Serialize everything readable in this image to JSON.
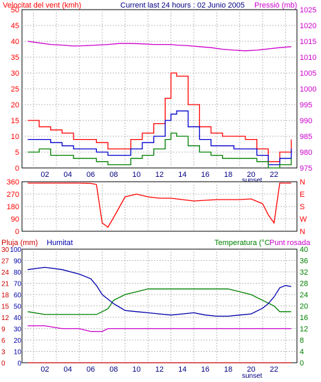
{
  "header": {
    "left_title": "Velocitat del vent (kmh)",
    "center_title": "Current last 24 hours : 02 Junio 2005",
    "right_title": "Pressió (mb)"
  },
  "x_ticks": [
    "02",
    "04",
    "06",
    "08",
    "10",
    "12",
    "14",
    "16",
    "18",
    "20",
    "22"
  ],
  "sunset_label": "sunset",
  "colors": {
    "wind_gust": "#ff0000",
    "wind_avg": "#0000cc",
    "wind_min": "#008000",
    "pressure": "#cc00cc",
    "direction": "#ff0000",
    "humidity": "#0000aa",
    "temperature": "#008000",
    "dewpoint": "#cc00cc",
    "rain": "#cc0000",
    "grid": "#bbbbbb"
  },
  "chart_data": [
    {
      "type": "line",
      "name": "wind-pressure",
      "left_axis": {
        "label": "Velocitat del vent (kmh)",
        "ticks": [
          0,
          5,
          10,
          15,
          20,
          25,
          30,
          35,
          40,
          45,
          50
        ],
        "ylim": [
          0,
          50
        ]
      },
      "right_axis": {
        "label": "Pressió (mb)",
        "ticks": [
          975,
          980,
          985,
          990,
          995,
          1000,
          1005,
          1010,
          1015,
          1020,
          1025
        ],
        "ylim": [
          975,
          1025
        ]
      },
      "x": [
        0.5,
        1.5,
        2.5,
        3.5,
        4.5,
        5.5,
        6.5,
        7.5,
        8.5,
        9.5,
        10.5,
        11.5,
        12.5,
        13,
        13.5,
        14.5,
        15.5,
        16.5,
        17.5,
        18.5,
        19.5,
        20.5,
        21.5,
        22.5,
        23.5
      ],
      "series": [
        {
          "key": "gust",
          "values": [
            15,
            13,
            12,
            11,
            9,
            9,
            8,
            6,
            6,
            9,
            11,
            14,
            22,
            30,
            29,
            20,
            13,
            11,
            10,
            10,
            9,
            6,
            2,
            5,
            9
          ]
        },
        {
          "key": "avg",
          "values": [
            9,
            9,
            8,
            7,
            6,
            6,
            5,
            4,
            4,
            6,
            8,
            10,
            15,
            17,
            18,
            13,
            9,
            7,
            7,
            6,
            6,
            4,
            1,
            3,
            6
          ]
        },
        {
          "key": "min",
          "values": [
            5,
            6,
            4,
            4,
            3,
            3,
            2,
            1,
            1,
            3,
            4,
            6,
            9,
            11,
            10,
            7,
            5,
            4,
            3,
            3,
            3,
            2,
            0,
            1,
            3
          ]
        },
        {
          "key": "pressure",
          "values": [
            1015,
            1014.5,
            1014,
            1013.8,
            1013.5,
            1013.6,
            1013.8,
            1014,
            1014.3,
            1014.3,
            1014.2,
            1014,
            1014,
            1014,
            1013.8,
            1013.6,
            1013.3,
            1013,
            1012.5,
            1012.2,
            1012,
            1012.2,
            1012.6,
            1013,
            1013.3
          ]
        }
      ]
    },
    {
      "type": "line",
      "name": "wind-direction",
      "left_axis": {
        "ticks": [
          0,
          90,
          180,
          270,
          360
        ],
        "ylim": [
          0,
          360
        ]
      },
      "right_axis": {
        "ticks": [
          "N",
          "W",
          "S",
          "E",
          "N"
        ]
      },
      "x": [
        0.5,
        2,
        3.5,
        5,
        6,
        6.5,
        7,
        7.5,
        8,
        9,
        10,
        11,
        12,
        13,
        14,
        15,
        16,
        17,
        18,
        19,
        20,
        21,
        21.5,
        22,
        22.5,
        23,
        23.5
      ],
      "series": [
        {
          "key": "direction",
          "values": [
            350,
            350,
            350,
            350,
            348,
            340,
            60,
            30,
            100,
            250,
            270,
            250,
            240,
            240,
            230,
            220,
            225,
            230,
            230,
            230,
            235,
            200,
            120,
            60,
            350,
            350,
            350
          ]
        }
      ]
    },
    {
      "type": "line",
      "name": "rain-humidity-temperature",
      "labels": {
        "rain": "Pluja (mm)",
        "humidity": "Humitat",
        "temperature": "Temperatura (°C",
        "dewpoint": "Punt rosada"
      },
      "left_axes": {
        "rain": {
          "ticks": [
            0,
            3,
            6,
            9,
            12,
            15,
            18,
            21,
            24,
            27,
            30
          ],
          "ylim": [
            0,
            30
          ]
        },
        "humidity": {
          "ticks": [
            0,
            10,
            20,
            30,
            40,
            50,
            60,
            70,
            80,
            90,
            100
          ],
          "ylim": [
            0,
            100
          ]
        }
      },
      "right_axis": {
        "ticks": [
          0,
          4,
          8,
          12,
          16,
          20,
          24,
          28,
          32,
          36,
          40
        ],
        "ylim": [
          0,
          40
        ]
      },
      "x": [
        0.5,
        2,
        3.5,
        5,
        6,
        6.5,
        7,
        7.5,
        8,
        9,
        10,
        11,
        12,
        13,
        14,
        15,
        16,
        17,
        18,
        19,
        20,
        21,
        21.5,
        22,
        22.5,
        23,
        23.5
      ],
      "series": [
        {
          "key": "humidity",
          "values": [
            82,
            84,
            82,
            78,
            74,
            68,
            60,
            56,
            52,
            46,
            45,
            44,
            43,
            42,
            43,
            44,
            42,
            41,
            41,
            42,
            43,
            48,
            52,
            58,
            66,
            68,
            67
          ]
        },
        {
          "key": "temperature",
          "values": [
            18,
            17,
            17,
            17,
            17,
            17,
            18,
            19,
            22,
            24,
            25,
            26,
            26,
            26,
            26,
            26,
            26,
            26,
            26,
            25,
            24,
            22,
            21,
            20,
            18,
            18,
            18
          ]
        },
        {
          "key": "dewpoint",
          "values": [
            13,
            13,
            12,
            12,
            11,
            11,
            11,
            12,
            12,
            12,
            12,
            12,
            12,
            12,
            12,
            12,
            12,
            12,
            12,
            12,
            12,
            12,
            12,
            12,
            12,
            12,
            12
          ]
        },
        {
          "key": "rain",
          "values": [
            0,
            0,
            0,
            0,
            0,
            0,
            0,
            0,
            0,
            0,
            0,
            0,
            0,
            0,
            0,
            0,
            0,
            0,
            0,
            0,
            0,
            0,
            0,
            0,
            0,
            0,
            0
          ]
        }
      ]
    }
  ]
}
